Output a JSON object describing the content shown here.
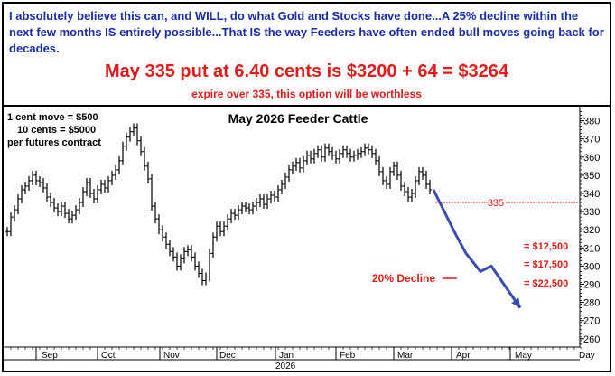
{
  "header": {
    "commentary": "I absolutely believe this can, and WILL, do what Gold and Stocks have done...A 25% decline within the next few months IS entirely possible...That IS the way Feeders have often ended bull moves going back for decades.",
    "headline": "May 335 put at 6.40 cents is $3200 + 64 = $3264",
    "subline": "expire over 335, this option will be worthless"
  },
  "colors": {
    "commentary": "#1a2ca8",
    "headline": "#e31b1b",
    "bars": "#000000",
    "projection_arrow": "#3b4bb4",
    "annotation_red": "#e31b1b"
  },
  "chart_data": {
    "type": "ohlc-bar",
    "title": "May 2026 Feeder Cattle",
    "notes": [
      "1 cent move = $500",
      "10 cents = $5000",
      "per futures contract"
    ],
    "x_ticks": [
      "Sep",
      "Oct",
      "Nov",
      "Dec",
      "Jan",
      "Feb",
      "Mar",
      "Apr",
      "May",
      "Day"
    ],
    "x_year": "2026",
    "y_ticks": [
      260,
      270,
      280,
      290,
      300,
      310,
      320,
      330,
      340,
      350,
      360,
      370,
      380
    ],
    "ylim": [
      255,
      385
    ],
    "grid": false,
    "price_closes": [
      319,
      327,
      331,
      337,
      342,
      344,
      347,
      350,
      347,
      346,
      343,
      338,
      335,
      332,
      330,
      333,
      329,
      326,
      328,
      331,
      335,
      341,
      346,
      340,
      337,
      342,
      345,
      343,
      347,
      350,
      353,
      358,
      366,
      371,
      374,
      376,
      369,
      363,
      355,
      348,
      333,
      326,
      320,
      316,
      312,
      308,
      305,
      300,
      304,
      308,
      309,
      305,
      300,
      296,
      292,
      294,
      307,
      316,
      322,
      319,
      322,
      326,
      329,
      328,
      331,
      333,
      332,
      331,
      333,
      335,
      337,
      334,
      337,
      339,
      338,
      342,
      345,
      349,
      353,
      355,
      357,
      354,
      358,
      361,
      359,
      362,
      364,
      360,
      365,
      363,
      361,
      359,
      362,
      364,
      362,
      360,
      361,
      362,
      363,
      365,
      364,
      362,
      358,
      352,
      347,
      345,
      352,
      355,
      350,
      344,
      341,
      338,
      340,
      347,
      352,
      350,
      345,
      342
    ],
    "reference_line": {
      "value": 335,
      "label": "335"
    },
    "projection_path": [
      {
        "day": 118,
        "price": 342
      },
      {
        "day": 124,
        "price": 318
      },
      {
        "day": 127,
        "price": 307
      },
      {
        "day": 131,
        "price": 297
      },
      {
        "day": 134,
        "price": 300
      },
      {
        "day": 142,
        "price": 277
      }
    ],
    "annotations": {
      "decline": "20% Decline",
      "levels": [
        "= $12,500",
        "= $17,500",
        "= $22,500"
      ]
    }
  }
}
